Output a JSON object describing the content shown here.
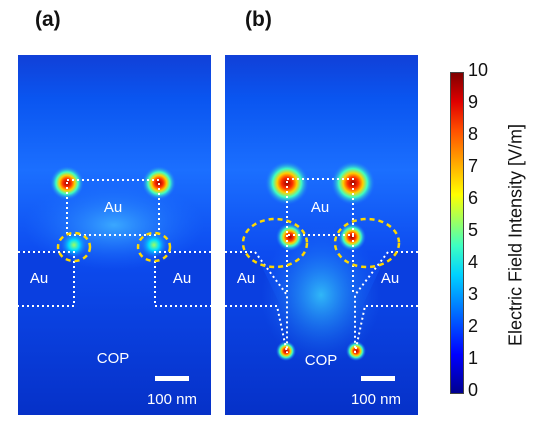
{
  "panels": [
    {
      "label": "(a)",
      "materials": {
        "top": "Au",
        "left": "Au",
        "right": "Au",
        "substrate": "COP"
      },
      "scale_bar": "100 nm"
    },
    {
      "label": "(b)",
      "materials": {
        "top": "Au",
        "left": "Au",
        "right": "Au",
        "substrate": "COP"
      },
      "scale_bar": "100 nm"
    }
  ],
  "colorbar": {
    "title": "Electric Field Intensity [V/m]",
    "ticks": [
      "10",
      "9",
      "8",
      "7",
      "6",
      "5",
      "4",
      "3",
      "2",
      "1",
      "0"
    ],
    "colors": [
      "#00008f",
      "#0000ff",
      "#006cff",
      "#00d2ff",
      "#a0ff5e",
      "#ffff00",
      "#ff5000",
      "#7f0000"
    ]
  }
}
